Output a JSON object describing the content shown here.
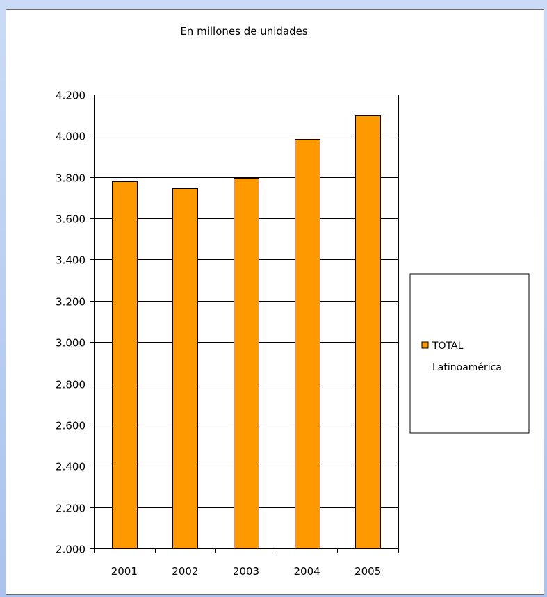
{
  "colors": {
    "bar_fill": "#ff9900",
    "bar_stroke": "#000000",
    "grid": "#000000",
    "background": "#ffffff"
  },
  "chart_data": {
    "type": "bar",
    "title": "En millones de unidades",
    "xlabel": "",
    "ylabel": "",
    "categories": [
      "2001",
      "2002",
      "2003",
      "2004",
      "2005"
    ],
    "series": [
      {
        "name": "TOTAL Latinoamérica",
        "legend_lines": [
          "TOTAL",
          "Latinoamérica"
        ],
        "values": [
          3780,
          3745,
          3795,
          3985,
          4100
        ]
      }
    ],
    "ylim": [
      2000,
      4200
    ],
    "yticks": [
      2000,
      2200,
      2400,
      2600,
      2800,
      3000,
      3200,
      3400,
      3600,
      3800,
      4000,
      4200
    ],
    "ytick_labels": [
      "2.000",
      "2.200",
      "2.400",
      "2.600",
      "2.800",
      "3.000",
      "3.200",
      "3.400",
      "3.600",
      "3.800",
      "4.000",
      "4.200"
    ],
    "grid": true,
    "legend_position": "right"
  }
}
